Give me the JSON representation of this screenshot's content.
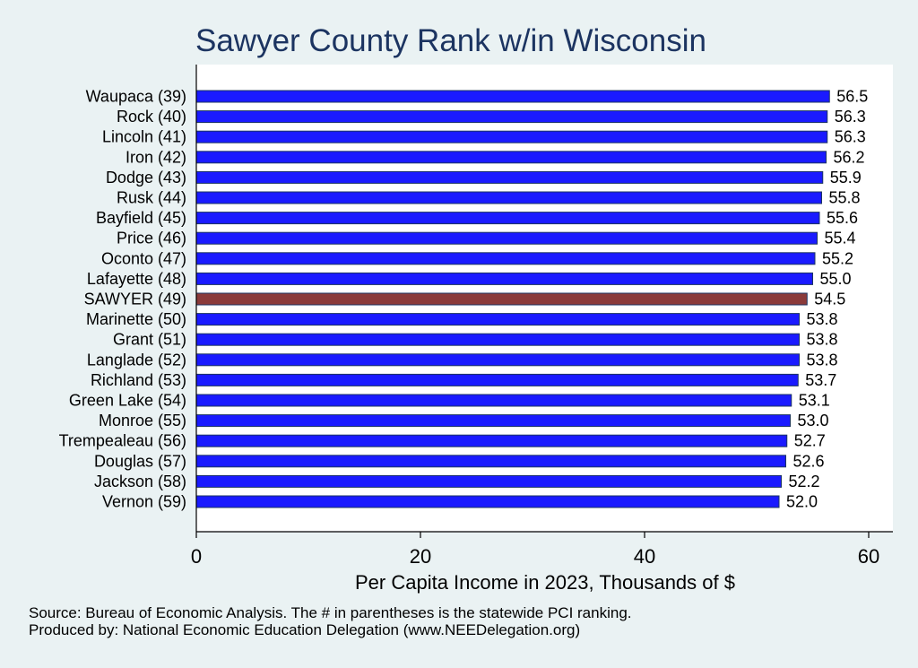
{
  "chart_data": {
    "type": "bar",
    "orientation": "horizontal",
    "title": "Sawyer County Rank w/in Wisconsin",
    "xlabel": "Per Capita Income in 2023, Thousands of $",
    "ylabel": "",
    "xlim": [
      0,
      62
    ],
    "xticks": [
      "0",
      "20",
      "40",
      "60"
    ],
    "grid": false,
    "categories": [
      "Waupaca (39)",
      "Rock (40)",
      "Lincoln (41)",
      "Iron (42)",
      "Dodge (43)",
      "Rusk (44)",
      "Bayfield (45)",
      "Price (46)",
      "Oconto (47)",
      "Lafayette (48)",
      "SAWYER (49)",
      "Marinette (50)",
      "Grant (51)",
      "Langlade (52)",
      "Richland (53)",
      "Green Lake (54)",
      "Monroe (55)",
      "Trempealeau (56)",
      "Douglas (57)",
      "Jackson (58)",
      "Vernon (59)"
    ],
    "values": [
      56.5,
      56.3,
      56.3,
      56.2,
      55.9,
      55.8,
      55.6,
      55.4,
      55.2,
      55.0,
      54.5,
      53.8,
      53.8,
      53.8,
      53.7,
      53.1,
      53.0,
      52.7,
      52.6,
      52.2,
      52.0
    ],
    "value_labels": [
      "56.5",
      "56.3",
      "56.3",
      "56.2",
      "55.9",
      "55.8",
      "55.6",
      "55.4",
      "55.2",
      "55.0",
      "54.5",
      "53.8",
      "53.8",
      "53.8",
      "53.7",
      "53.1",
      "53.0",
      "52.7",
      "52.6",
      "52.2",
      "52.0"
    ],
    "highlight_index": 10,
    "colors": {
      "bar": "#1a1aff",
      "highlight": "#8b3a3a",
      "bar_edge": "#1c3461",
      "title": "#1c3461",
      "background": "#eaf2f3",
      "plot_background": "#ffffff"
    }
  },
  "notes": {
    "source": "Source: Bureau of Economic Analysis. The # in parentheses is the statewide PCI ranking.",
    "producer": "Produced by: National Economic Education Delegation (www.NEEDelegation.org)"
  }
}
